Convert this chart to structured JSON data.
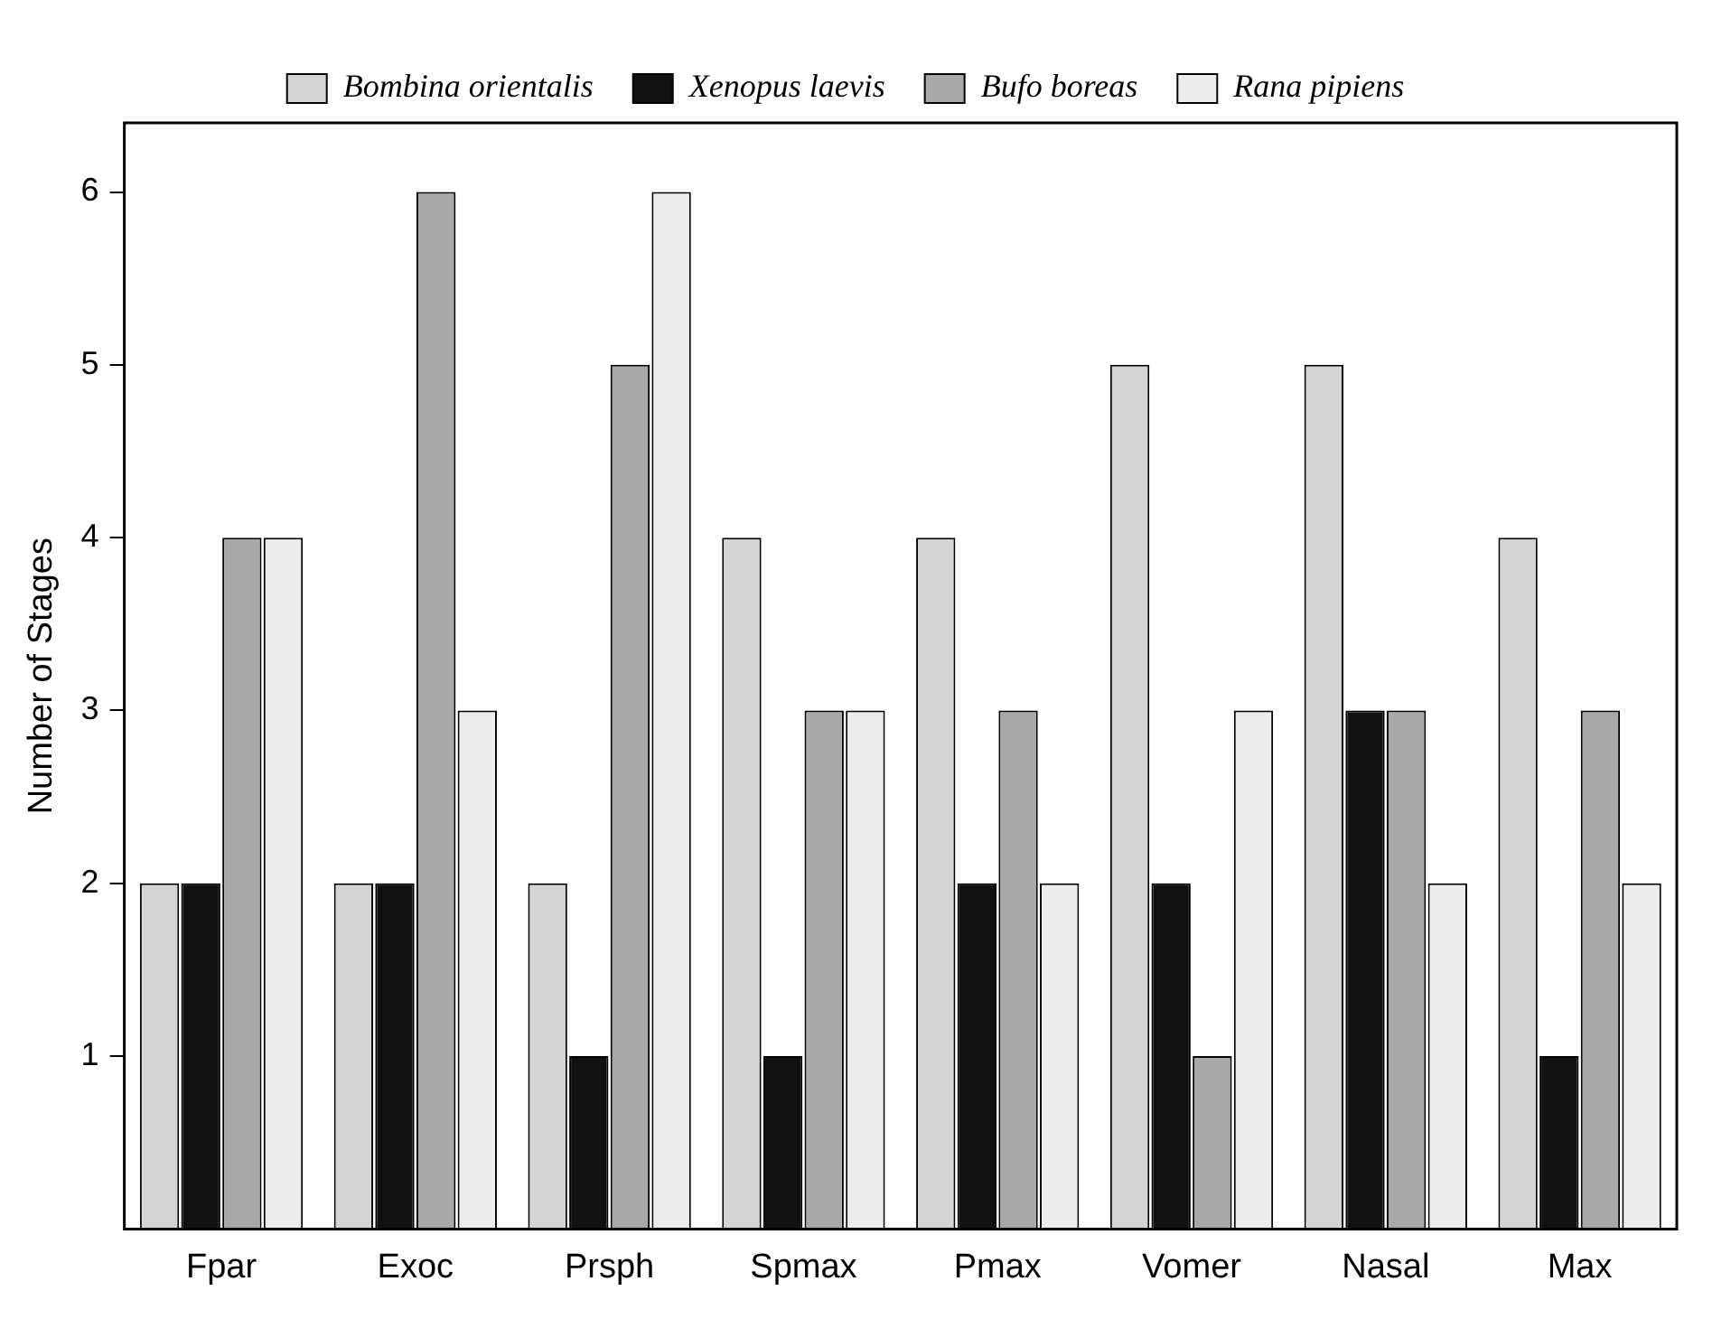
{
  "chart_data": {
    "type": "bar",
    "ylabel": "Number of Stages",
    "categories": [
      "Fpar",
      "Exoc",
      "Prsph",
      "Spmax",
      "Pmax",
      "Vomer",
      "Nasal",
      "Max"
    ],
    "series": [
      {
        "name": "Bombina orientalis",
        "color": "#d4d4d4",
        "values": [
          2,
          2,
          2,
          4,
          4,
          5,
          5,
          4
        ]
      },
      {
        "name": "Xenopus laevis",
        "color": "#111111",
        "values": [
          2,
          2,
          1,
          1,
          2,
          2,
          3,
          1
        ]
      },
      {
        "name": "Bufo boreas",
        "color": "#a8a8a8",
        "values": [
          4,
          6,
          5,
          3,
          3,
          1,
          3,
          3
        ]
      },
      {
        "name": "Rana pipiens",
        "color": "#ececec",
        "values": [
          4,
          3,
          6,
          3,
          2,
          3,
          2,
          2
        ]
      }
    ],
    "ylim": [
      0,
      6.4
    ],
    "yticks": [
      1,
      2,
      3,
      4,
      5,
      6
    ],
    "grid": false,
    "legend": "top"
  }
}
